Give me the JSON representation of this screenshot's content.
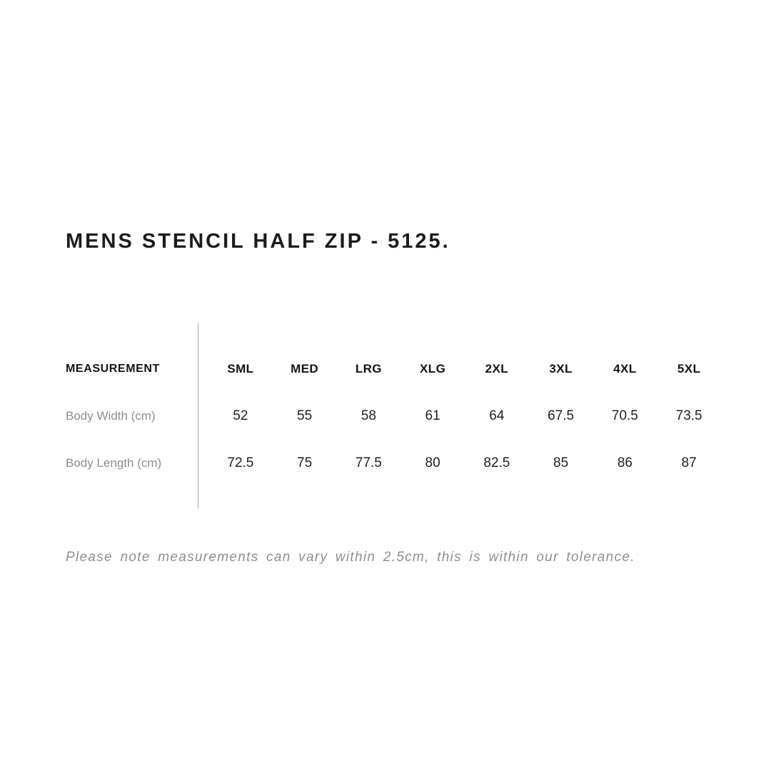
{
  "page": {
    "title": "MENS STENCIL HALF ZIP - 5125.",
    "note": "Please note measurements can vary within 2.5cm, this is within our tolerance."
  },
  "chart_data": {
    "type": "table",
    "title": "MENS STENCIL HALF ZIP - 5125.",
    "columns": [
      "MEASUREMENT",
      "SML",
      "MED",
      "LRG",
      "XLG",
      "2XL",
      "3XL",
      "4XL",
      "5XL"
    ],
    "rows": [
      {
        "label": "Body Width (cm)",
        "values": [
          52,
          55,
          58,
          61,
          64,
          67.5,
          70.5,
          73.5
        ]
      },
      {
        "label": "Body Length (cm)",
        "values": [
          72.5,
          75,
          77.5,
          80,
          82.5,
          85,
          86,
          87
        ]
      }
    ],
    "note": "Please note measurements can vary within 2.5cm, this is within our tolerance.",
    "colors": {
      "text_primary": "#1c1c1c",
      "text_muted": "#8e8e8e",
      "divider": "#a8a8a8",
      "background": "#ffffff"
    }
  }
}
